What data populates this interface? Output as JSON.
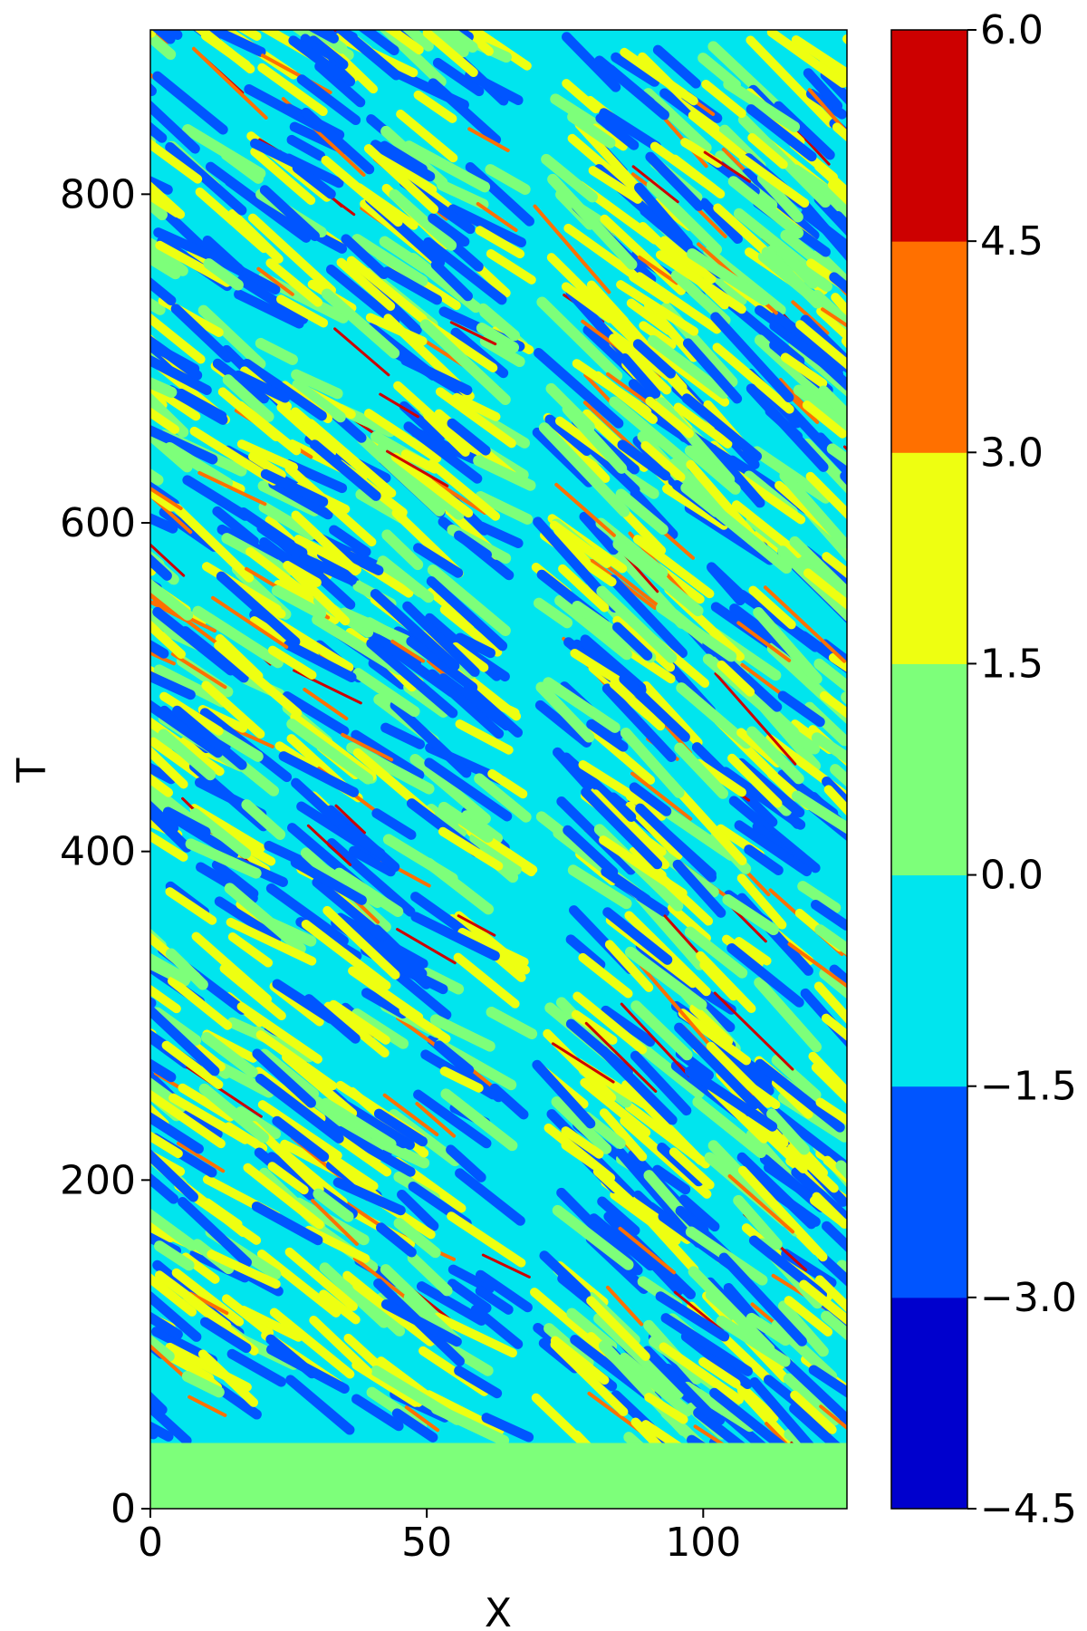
{
  "chart_data": {
    "type": "heatmap",
    "title": "",
    "xlabel": "X",
    "ylabel": "T",
    "xlim": [
      0,
      126
    ],
    "ylim": [
      0,
      900
    ],
    "x_ticks": [
      0,
      50,
      100
    ],
    "y_ticks": [
      0,
      200,
      400,
      600,
      800
    ],
    "grid": false,
    "description_of_field": "Filled contour of a spatiotemporal chaotic field: uniform light green (0.0 to 1.5) for T below about 40, then oblique stripes of dark/medium blue, cyan, green, yellow, with thin orange/red streaks, tilting left in the left half and right in the right half.",
    "colorbar": {
      "levels": [
        -4.5,
        -3.0,
        -1.5,
        0.0,
        1.5,
        3.0,
        4.5,
        6.0
      ],
      "level_labels": [
        "−4.5",
        "−3.0",
        "−1.5",
        "0.0",
        "1.5",
        "3.0",
        "4.5",
        "6.0"
      ],
      "colors": [
        "#0000cd",
        "#0055ff",
        "#00e5ee",
        "#7dff7a",
        "#eeff11",
        "#ff7000",
        "#cd0000"
      ]
    }
  }
}
